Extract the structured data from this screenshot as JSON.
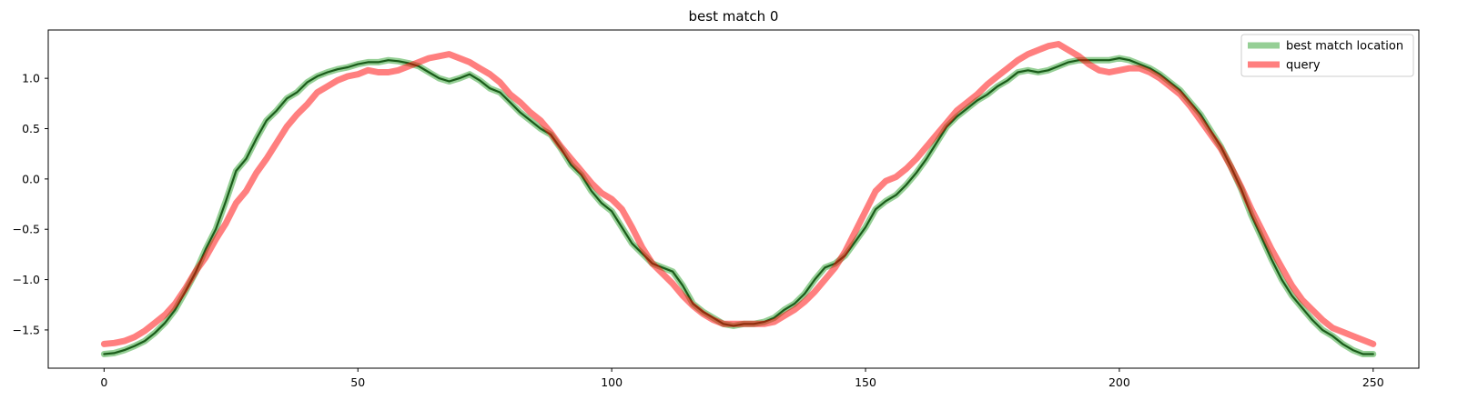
{
  "chart_data": {
    "type": "line",
    "title": "best match 0",
    "xlabel": "",
    "ylabel": "",
    "xlim": [
      -11,
      259
    ],
    "ylim": [
      -1.88,
      1.48
    ],
    "xticks": [
      0,
      50,
      100,
      150,
      200,
      250
    ],
    "xtick_labels": [
      "0",
      "50",
      "100",
      "150",
      "200",
      "250"
    ],
    "yticks": [
      -1.5,
      -1.0,
      -0.5,
      0.0,
      0.5,
      1.0
    ],
    "ytick_labels": [
      "−1.5",
      "−1.0",
      "−0.5",
      "0.0",
      "0.5",
      "1.0"
    ],
    "grid": false,
    "legend_position": "top-right",
    "series": [
      {
        "name": "best match location",
        "color": "#2ca02c",
        "inner_color": "#1a5c1a",
        "x": [
          0,
          2,
          4,
          6,
          8,
          10,
          12,
          14,
          16,
          18,
          20,
          22,
          24,
          26,
          28,
          30,
          32,
          34,
          36,
          38,
          40,
          42,
          44,
          46,
          48,
          50,
          52,
          54,
          56,
          58,
          60,
          62,
          64,
          66,
          68,
          70,
          72,
          74,
          76,
          78,
          80,
          82,
          84,
          86,
          88,
          90,
          92,
          94,
          96,
          98,
          100,
          102,
          104,
          106,
          108,
          110,
          112,
          114,
          116,
          118,
          120,
          122,
          124,
          126,
          128,
          130,
          132,
          134,
          136,
          138,
          140,
          142,
          144,
          146,
          148,
          150,
          152,
          154,
          156,
          158,
          160,
          162,
          164,
          166,
          168,
          170,
          172,
          174,
          176,
          178,
          180,
          182,
          184,
          186,
          188,
          190,
          192,
          194,
          196,
          198,
          200,
          202,
          204,
          206,
          208,
          210,
          212,
          214,
          216,
          218,
          220,
          222,
          224,
          226,
          228,
          230,
          232,
          234,
          236,
          238,
          240,
          242,
          244,
          246,
          248,
          250
        ],
        "y": [
          -1.74,
          -1.73,
          -1.7,
          -1.66,
          -1.61,
          -1.53,
          -1.43,
          -1.3,
          -1.12,
          -0.93,
          -0.7,
          -0.5,
          -0.22,
          0.08,
          0.2,
          0.4,
          0.58,
          0.68,
          0.8,
          0.86,
          0.96,
          1.02,
          1.06,
          1.09,
          1.11,
          1.14,
          1.16,
          1.16,
          1.18,
          1.17,
          1.15,
          1.12,
          1.06,
          1.0,
          0.97,
          1.0,
          1.04,
          0.98,
          0.9,
          0.86,
          0.76,
          0.66,
          0.58,
          0.5,
          0.44,
          0.3,
          0.14,
          0.04,
          -0.12,
          -0.24,
          -0.32,
          -0.48,
          -0.64,
          -0.74,
          -0.84,
          -0.88,
          -0.92,
          -1.06,
          -1.24,
          -1.32,
          -1.38,
          -1.44,
          -1.46,
          -1.44,
          -1.44,
          -1.42,
          -1.38,
          -1.3,
          -1.24,
          -1.14,
          -1.0,
          -0.88,
          -0.84,
          -0.76,
          -0.62,
          -0.48,
          -0.3,
          -0.22,
          -0.16,
          -0.06,
          0.06,
          0.2,
          0.36,
          0.52,
          0.62,
          0.7,
          0.78,
          0.84,
          0.92,
          0.98,
          1.06,
          1.08,
          1.06,
          1.08,
          1.12,
          1.16,
          1.18,
          1.18,
          1.18,
          1.18,
          1.2,
          1.18,
          1.14,
          1.1,
          1.04,
          0.96,
          0.88,
          0.76,
          0.64,
          0.48,
          0.32,
          0.12,
          -0.1,
          -0.36,
          -0.58,
          -0.8,
          -1.0,
          -1.16,
          -1.28,
          -1.4,
          -1.5,
          -1.56,
          -1.64,
          -1.7,
          -1.74,
          -1.74
        ]
      },
      {
        "name": "query",
        "color": "#ff0000",
        "x": [
          0,
          2,
          4,
          6,
          8,
          10,
          12,
          14,
          16,
          18,
          20,
          22,
          24,
          26,
          28,
          30,
          32,
          34,
          36,
          38,
          40,
          42,
          44,
          46,
          48,
          50,
          52,
          54,
          56,
          58,
          60,
          62,
          64,
          66,
          68,
          70,
          72,
          74,
          76,
          78,
          80,
          82,
          84,
          86,
          88,
          90,
          92,
          94,
          96,
          98,
          100,
          102,
          104,
          106,
          108,
          110,
          112,
          114,
          116,
          118,
          120,
          122,
          124,
          126,
          128,
          130,
          132,
          134,
          136,
          138,
          140,
          142,
          144,
          146,
          148,
          150,
          152,
          154,
          156,
          158,
          160,
          162,
          164,
          166,
          168,
          170,
          172,
          174,
          176,
          178,
          180,
          182,
          184,
          186,
          188,
          190,
          192,
          194,
          196,
          198,
          200,
          202,
          204,
          206,
          208,
          210,
          212,
          214,
          216,
          218,
          220,
          222,
          224,
          226,
          228,
          230,
          232,
          234,
          236,
          238,
          240,
          242,
          244,
          246,
          248,
          250
        ],
        "y": [
          -1.64,
          -1.63,
          -1.61,
          -1.57,
          -1.51,
          -1.43,
          -1.35,
          -1.24,
          -1.09,
          -0.92,
          -0.78,
          -0.6,
          -0.44,
          -0.24,
          -0.12,
          0.06,
          0.2,
          0.36,
          0.52,
          0.64,
          0.74,
          0.86,
          0.92,
          0.98,
          1.02,
          1.04,
          1.08,
          1.06,
          1.06,
          1.08,
          1.12,
          1.16,
          1.2,
          1.22,
          1.24,
          1.2,
          1.16,
          1.1,
          1.04,
          0.96,
          0.84,
          0.76,
          0.66,
          0.58,
          0.46,
          0.32,
          0.2,
          0.08,
          -0.04,
          -0.14,
          -0.2,
          -0.3,
          -0.48,
          -0.68,
          -0.84,
          -0.94,
          -1.04,
          -1.16,
          -1.26,
          -1.34,
          -1.4,
          -1.44,
          -1.44,
          -1.44,
          -1.44,
          -1.44,
          -1.42,
          -1.36,
          -1.3,
          -1.22,
          -1.12,
          -1.0,
          -0.88,
          -0.72,
          -0.52,
          -0.32,
          -0.12,
          -0.02,
          0.02,
          0.1,
          0.2,
          0.32,
          0.44,
          0.56,
          0.68,
          0.76,
          0.84,
          0.94,
          1.02,
          1.1,
          1.18,
          1.24,
          1.28,
          1.32,
          1.34,
          1.28,
          1.22,
          1.14,
          1.08,
          1.06,
          1.08,
          1.1,
          1.1,
          1.06,
          1.0,
          0.92,
          0.84,
          0.72,
          0.58,
          0.44,
          0.3,
          0.12,
          -0.08,
          -0.3,
          -0.5,
          -0.7,
          -0.88,
          -1.06,
          -1.2,
          -1.3,
          -1.4,
          -1.48,
          -1.52,
          -1.56,
          -1.6,
          -1.64
        ]
      }
    ]
  }
}
